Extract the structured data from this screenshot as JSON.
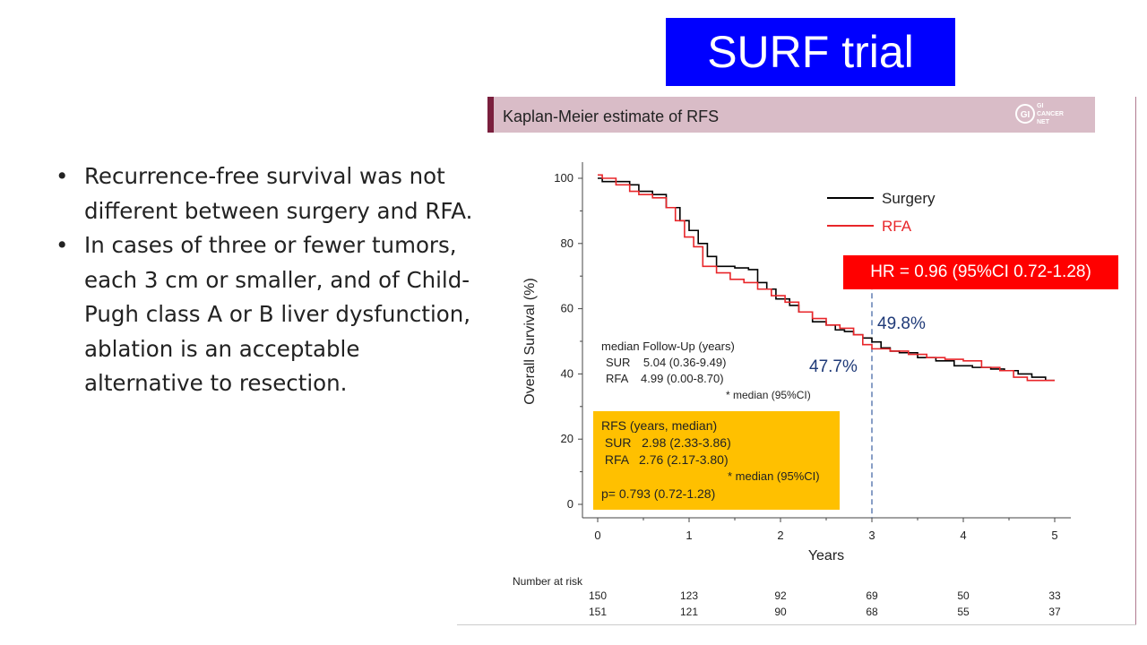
{
  "slide": {
    "title": "SURF trial",
    "bullets": [
      "Recurrence-free survival was not different between surgery and RFA.",
      "In cases of three or fewer tumors, each 3 cm or smaller, and of Child-Pugh class A or B liver dysfunction, ablation is an acceptable alternative to resection."
    ]
  },
  "figure": {
    "header": "Kaplan-Meier estimate of RFS",
    "logo_text": [
      "GI",
      "CANCER",
      "NET"
    ],
    "hr_label": "HR = 0.96 (95%CI 0.72-1.28)",
    "median_followup": {
      "title": "median Follow-Up (years)",
      "rows": [
        "SUR    5.04 (0.36-9.49)",
        "RFA    4.99 (0.00-8.70)"
      ],
      "note": "* median (95%CI)"
    },
    "rfs_box": {
      "title": "RFS (years, median)",
      "rows": [
        " SUR   2.98 (2.33-3.86)",
        " RFA   2.76 (2.17-3.80)"
      ],
      "note": "* median (95%CI)",
      "pvalue": "p= 0.793 (0.72-1.28)",
      "color": "#ffc000"
    },
    "risk_table": {
      "title": "Number at risk",
      "rows": [
        [
          "150",
          "123",
          "92",
          "69",
          "50",
          "33"
        ],
        [
          "151",
          "121",
          "90",
          "68",
          "55",
          "37"
        ]
      ]
    }
  },
  "chart_data": {
    "type": "line",
    "title": "",
    "xlabel": "Years",
    "ylabel": "Overall Survival (%)",
    "xlim": [
      0,
      5
    ],
    "ylim": [
      0,
      100
    ],
    "xticks": [
      0,
      1,
      2,
      3,
      4,
      5
    ],
    "yticks": [
      0,
      20,
      40,
      60,
      80,
      100
    ],
    "legend_position": "top-right",
    "annotations": [
      {
        "text": "49.8%",
        "x": 3,
        "y": 49.8,
        "color": "#1f3a78"
      },
      {
        "text": "47.7%",
        "x": 3,
        "y": 47.7,
        "color": "#1f3a78"
      }
    ],
    "reference_line": {
      "x": 3,
      "style": "dashed",
      "color": "#3a5fa0"
    },
    "series": [
      {
        "name": "Surgery",
        "color": "#000000",
        "x": [
          0,
          0.05,
          0.2,
          0.35,
          0.45,
          0.6,
          0.75,
          0.9,
          1.0,
          1.1,
          1.2,
          1.3,
          1.4,
          1.5,
          1.65,
          1.75,
          1.85,
          1.95,
          2.1,
          2.2,
          2.35,
          2.5,
          2.6,
          2.7,
          2.8,
          2.9,
          3.0,
          3.1,
          3.2,
          3.3,
          3.5,
          3.7,
          3.9,
          4.1,
          4.3,
          4.45,
          4.6,
          4.75,
          4.9,
          5.0
        ],
        "y": [
          100,
          99,
          99,
          98,
          96,
          95,
          91,
          87,
          84,
          80,
          76,
          73,
          73,
          72.5,
          72,
          68,
          66,
          63,
          61,
          59,
          56,
          55,
          53.5,
          53,
          52,
          51,
          49.8,
          48,
          47,
          46.5,
          45,
          44,
          42.5,
          42,
          41.5,
          41,
          40,
          39,
          38,
          38
        ]
      },
      {
        "name": "RFA",
        "color": "#e8262a",
        "x": [
          0,
          0.05,
          0.2,
          0.35,
          0.45,
          0.6,
          0.75,
          0.85,
          0.95,
          1.05,
          1.15,
          1.3,
          1.45,
          1.6,
          1.75,
          1.9,
          2.05,
          2.2,
          2.35,
          2.5,
          2.65,
          2.8,
          2.9,
          3.0,
          3.2,
          3.4,
          3.6,
          3.8,
          4.0,
          4.2,
          4.4,
          4.55,
          4.7,
          4.85,
          5.0
        ],
        "y": [
          101,
          100,
          98,
          96,
          95,
          94,
          91,
          87,
          82,
          79,
          73,
          71,
          69,
          68,
          66,
          64,
          62,
          59,
          57,
          55,
          54,
          52,
          49,
          47.7,
          47,
          46,
          45,
          44.5,
          44,
          42,
          41,
          39,
          38,
          38,
          38
        ]
      }
    ]
  }
}
